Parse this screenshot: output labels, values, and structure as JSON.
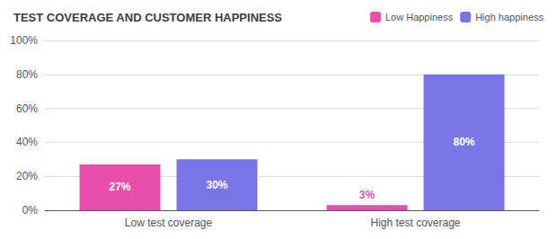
{
  "chart_data": {
    "type": "bar",
    "title": "TEST COVERAGE AND CUSTOMER HAPPINESS",
    "categories": [
      "Low test coverage",
      "High test coverage"
    ],
    "series": [
      {
        "name": "Low Happiness",
        "color": "#e94faa",
        "values": [
          27,
          3
        ],
        "value_labels": [
          "27%",
          "3%"
        ]
      },
      {
        "name": "High happiness",
        "color": "#7b76e8",
        "values": [
          30,
          80
        ],
        "value_labels": [
          "30%",
          "80%"
        ]
      }
    ],
    "ylim": [
      0,
      100
    ],
    "yticks": [
      {
        "value": 0,
        "label": "0%"
      },
      {
        "value": 20,
        "label": "20%"
      },
      {
        "value": 40,
        "label": "40%"
      },
      {
        "value": 60,
        "label": "60%"
      },
      {
        "value": 80,
        "label": "80%"
      },
      {
        "value": 100,
        "label": "100%"
      }
    ],
    "grid": true,
    "legend": "upper right",
    "data_labels": true
  }
}
